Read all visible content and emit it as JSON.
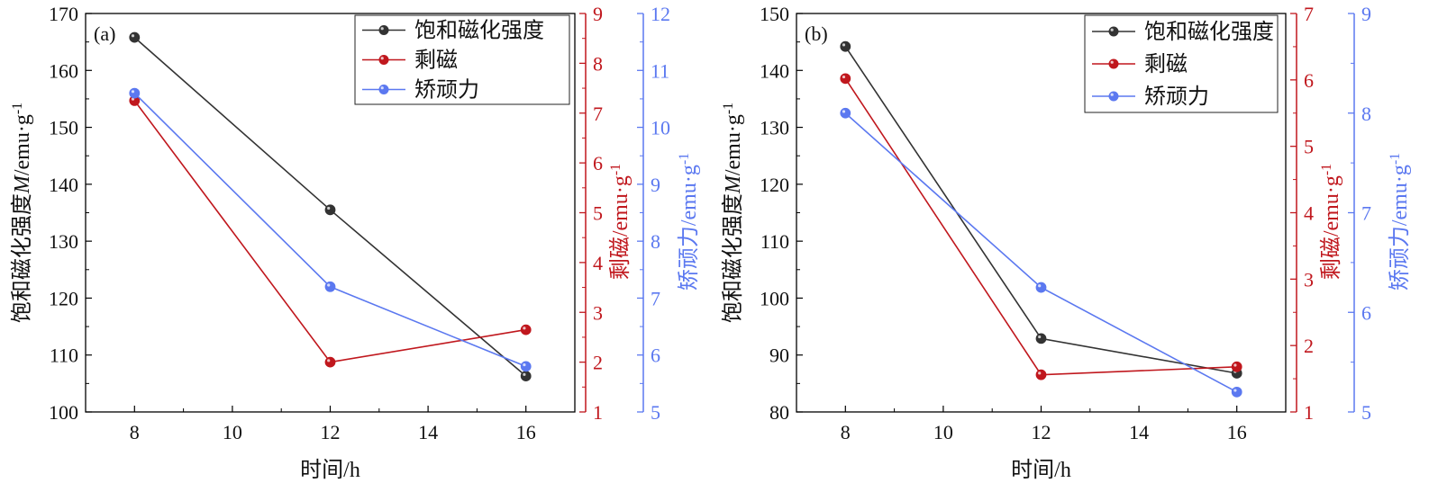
{
  "colors": {
    "saturation": "#333333",
    "remanence": "#c0171d",
    "coercivity": "#5b78f0",
    "frame": "#000000"
  },
  "chart_data": [
    {
      "type": "line",
      "panel_label": "(a)",
      "xlabel": "时间/h",
      "xlim": [
        7,
        17
      ],
      "xticks": [
        8,
        10,
        12,
        14,
        16
      ],
      "axes": [
        {
          "ylim": [
            100,
            170
          ],
          "ticks": [
            100,
            110,
            120,
            130,
            140,
            150,
            160,
            170
          ],
          "label_main": "饱和磁化强度",
          "label_var": "M",
          "label_unit": "/emu·g",
          "label_sup": "-1"
        },
        {
          "ylim": [
            1,
            9
          ],
          "ticks": [
            1,
            2,
            3,
            4,
            5,
            6,
            7,
            8,
            9
          ],
          "label_main": "剩磁",
          "label_unit": "/emu·g",
          "label_sup": "-1"
        },
        {
          "ylim": [
            5,
            12
          ],
          "ticks": [
            5,
            6,
            7,
            8,
            9,
            10,
            11,
            12
          ],
          "label_main": "矫顽力",
          "label_unit": "/emu·g",
          "label_sup": "-1"
        }
      ],
      "series": [
        {
          "name": "饱和磁化强度",
          "axis": 0,
          "color_key": "saturation",
          "x": [
            8,
            12,
            16
          ],
          "y": [
            165.8,
            135.5,
            106.3
          ]
        },
        {
          "name": "剩磁",
          "axis": 1,
          "color_key": "remanence",
          "x": [
            8,
            12,
            16
          ],
          "y": [
            7.25,
            2.0,
            2.65
          ]
        },
        {
          "name": "矫顽力",
          "axis": 2,
          "color_key": "coercivity",
          "x": [
            8,
            12,
            16
          ],
          "y": [
            10.6,
            7.2,
            5.8
          ]
        }
      ],
      "legend": {
        "location": "top-right",
        "entries": [
          "饱和磁化强度",
          "剩磁",
          "矫顽力"
        ]
      }
    },
    {
      "type": "line",
      "panel_label": "(b)",
      "xlabel": "时间/h",
      "xlim": [
        7,
        17
      ],
      "xticks": [
        8,
        10,
        12,
        14,
        16
      ],
      "axes": [
        {
          "ylim": [
            80,
            150
          ],
          "ticks": [
            80,
            90,
            100,
            110,
            120,
            130,
            140,
            150
          ],
          "label_main": "饱和磁化强度",
          "label_var": "M",
          "label_unit": "/emu·g",
          "label_sup": "-1"
        },
        {
          "ylim": [
            1,
            7
          ],
          "ticks": [
            1,
            2,
            3,
            4,
            5,
            6,
            7
          ],
          "label_main": "剩磁",
          "label_unit": "/emu·g",
          "label_sup": "-1"
        },
        {
          "ylim": [
            5,
            9
          ],
          "ticks": [
            5,
            6,
            7,
            8,
            9
          ],
          "label_main": "矫顽力",
          "label_unit": "/emu·g",
          "label_sup": "-1"
        }
      ],
      "series": [
        {
          "name": "饱和磁化强度",
          "axis": 0,
          "color_key": "saturation",
          "x": [
            8,
            12,
            16
          ],
          "y": [
            144.2,
            92.9,
            86.8
          ]
        },
        {
          "name": "剩磁",
          "axis": 1,
          "color_key": "remanence",
          "x": [
            8,
            12,
            16
          ],
          "y": [
            6.02,
            1.56,
            1.68
          ]
        },
        {
          "name": "矫顽力",
          "axis": 2,
          "color_key": "coercivity",
          "x": [
            8,
            12,
            16
          ],
          "y": [
            8.0,
            6.25,
            5.2
          ]
        }
      ],
      "legend": {
        "location": "top-right",
        "entries": [
          "饱和磁化强度",
          "剩磁",
          "矫顽力"
        ]
      }
    }
  ]
}
